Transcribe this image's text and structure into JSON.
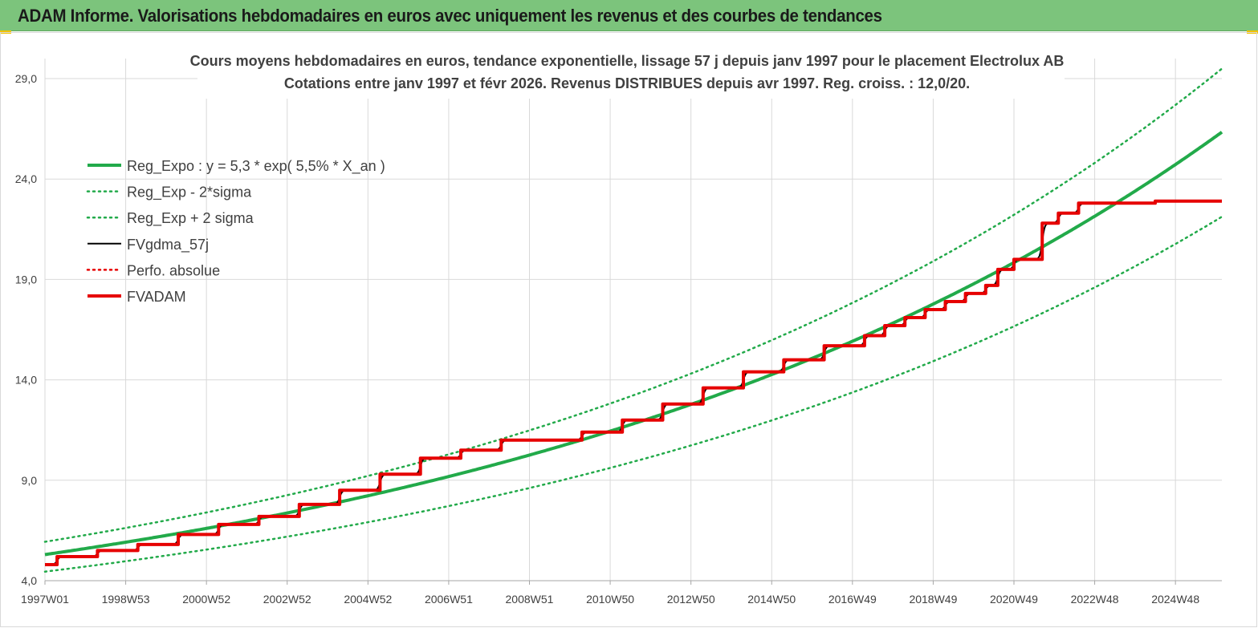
{
  "header": {
    "title": "ADAM Informe. Valorisations hebdomadaires en euros avec uniquement les revenus et des courbes de tendances"
  },
  "colors": {
    "header_bg": "#7cc47c",
    "trend": "#22aa4a",
    "fv": "#000000",
    "adam": "#e60000",
    "grid": "#d9d9d9",
    "text": "#404040"
  },
  "chart_data": {
    "type": "line",
    "title_lines": [
      "Cours moyens hebdomadaires en euros, tendance exponentielle, lissage 57 j depuis janv 1997 pour le placement Electrolux AB",
      "Cotations entre janv 1997 et févr 2026. Revenus DISTRIBUES  depuis avr 1997. Reg. croiss. : 12,0/20."
    ],
    "ylim": [
      4,
      30
    ],
    "yticks": [
      "4,0",
      "9,0",
      "14,0",
      "19,0",
      "24,0",
      "29,0"
    ],
    "xlim": [
      1997.0,
      2026.15
    ],
    "xticks": [
      "1997W01",
      "1998W53",
      "2000W52",
      "2002W52",
      "2004W52",
      "2006W51",
      "2008W51",
      "2010W50",
      "2012W50",
      "2014W50",
      "2016W49",
      "2018W49",
      "2020W49",
      "2022W48",
      "2024W48"
    ],
    "xtick_years": [
      1997.0,
      1999.0,
      2001.0,
      2003.0,
      2005.0,
      2007.0,
      2009.0,
      2011.0,
      2013.0,
      2015.0,
      2017.0,
      2019.0,
      2021.0,
      2023.0,
      2025.0
    ],
    "grid": true,
    "legend_position": "top-left",
    "regression": {
      "a": 5.3,
      "rate_percent": 5.5,
      "lower_factor": 0.84,
      "upper_factor": 1.12
    },
    "series": [
      {
        "name": "Reg_Expo : y = 5,3 * exp( 5,5% *  X_an )",
        "style": "solid-thick",
        "color": "#22aa4a",
        "curve": "reg"
      },
      {
        "name": "Reg_Exp - 2*sigma",
        "style": "dotted",
        "color": "#22aa4a",
        "curve": "lower"
      },
      {
        "name": "Reg_Exp + 2 sigma",
        "style": "dotted",
        "color": "#22aa4a",
        "curve": "upper"
      },
      {
        "name": "FVgdma_57j",
        "style": "solid",
        "color": "#000000",
        "curve": "fv"
      },
      {
        "name": "Perfo. absolue",
        "style": "dotted",
        "color": "#e60000",
        "curve": "none"
      },
      {
        "name": "FVADAM",
        "style": "solid-thick",
        "color": "#e60000",
        "curve": "adam",
        "steps": [
          {
            "x": 1997.0,
            "y": 4.8
          },
          {
            "x": 1997.3,
            "y": 5.2
          },
          {
            "x": 1998.3,
            "y": 5.5
          },
          {
            "x": 1999.3,
            "y": 5.8
          },
          {
            "x": 2000.3,
            "y": 6.3
          },
          {
            "x": 2001.3,
            "y": 6.8
          },
          {
            "x": 2002.3,
            "y": 7.2
          },
          {
            "x": 2003.3,
            "y": 7.8
          },
          {
            "x": 2004.3,
            "y": 8.5
          },
          {
            "x": 2005.3,
            "y": 9.3
          },
          {
            "x": 2006.3,
            "y": 10.1
          },
          {
            "x": 2007.3,
            "y": 10.5
          },
          {
            "x": 2008.3,
            "y": 11.0
          },
          {
            "x": 2010.3,
            "y": 11.4
          },
          {
            "x": 2011.3,
            "y": 12.0
          },
          {
            "x": 2012.3,
            "y": 12.8
          },
          {
            "x": 2013.3,
            "y": 13.6
          },
          {
            "x": 2014.3,
            "y": 14.4
          },
          {
            "x": 2015.3,
            "y": 15.0
          },
          {
            "x": 2016.3,
            "y": 15.7
          },
          {
            "x": 2017.3,
            "y": 16.2
          },
          {
            "x": 2017.8,
            "y": 16.7
          },
          {
            "x": 2018.3,
            "y": 17.1
          },
          {
            "x": 2018.8,
            "y": 17.5
          },
          {
            "x": 2019.3,
            "y": 17.9
          },
          {
            "x": 2019.8,
            "y": 18.3
          },
          {
            "x": 2020.3,
            "y": 18.7
          },
          {
            "x": 2020.6,
            "y": 19.5
          },
          {
            "x": 2021.0,
            "y": 20.0
          },
          {
            "x": 2021.7,
            "y": 21.8
          },
          {
            "x": 2022.1,
            "y": 22.3
          },
          {
            "x": 2022.6,
            "y": 22.8
          },
          {
            "x": 2024.5,
            "y": 22.9
          },
          {
            "x": 2026.15,
            "y": 22.9
          }
        ]
      }
    ]
  }
}
